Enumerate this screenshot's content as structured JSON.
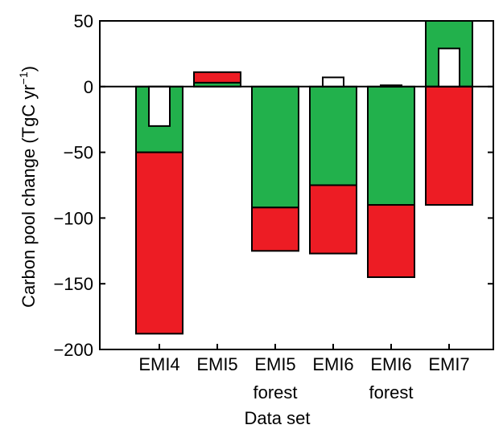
{
  "chart_data": {
    "type": "bar",
    "stacked": true,
    "title": "",
    "xlabel": "Data set",
    "ylabel_main": "Carbon pool change (TgC yr",
    "ylabel_sup": "−1",
    "ylabel_close": ")",
    "ylim": [
      -200,
      50
    ],
    "yticks": [
      50,
      0,
      -50,
      -100,
      -150,
      -200
    ],
    "ytick_labels": [
      "50",
      "0",
      "−50",
      "−100",
      "−150",
      "−200"
    ],
    "grid": false,
    "colors": {
      "green": "#22b14c",
      "red": "#ed1c24",
      "white": "#ffffff"
    },
    "categories": [
      {
        "line1": "EMI4",
        "line2": ""
      },
      {
        "line1": "EMI5",
        "line2": ""
      },
      {
        "line1": "EMI5",
        "line2": "forest"
      },
      {
        "line1": "EMI6",
        "line2": ""
      },
      {
        "line1": "EMI6",
        "line2": "forest"
      },
      {
        "line1": "EMI7",
        "line2": ""
      }
    ],
    "series": [
      {
        "color": "green",
        "segments": [
          [
            0,
            -50
          ],
          [
            0,
            3
          ],
          [
            0,
            -92
          ],
          [
            0,
            -75
          ],
          [
            0,
            -90
          ],
          [
            0,
            50
          ]
        ]
      },
      {
        "color": "red",
        "segments": [
          [
            -50,
            -188
          ],
          [
            3,
            11
          ],
          [
            -92,
            -125
          ],
          [
            -75,
            -127
          ],
          [
            -90,
            -145
          ],
          [
            0,
            -90
          ]
        ]
      },
      {
        "color": "white",
        "segments": [
          [
            0,
            -30
          ],
          null,
          null,
          [
            0,
            7
          ],
          [
            0,
            1
          ],
          [
            0,
            29
          ]
        ]
      }
    ]
  }
}
